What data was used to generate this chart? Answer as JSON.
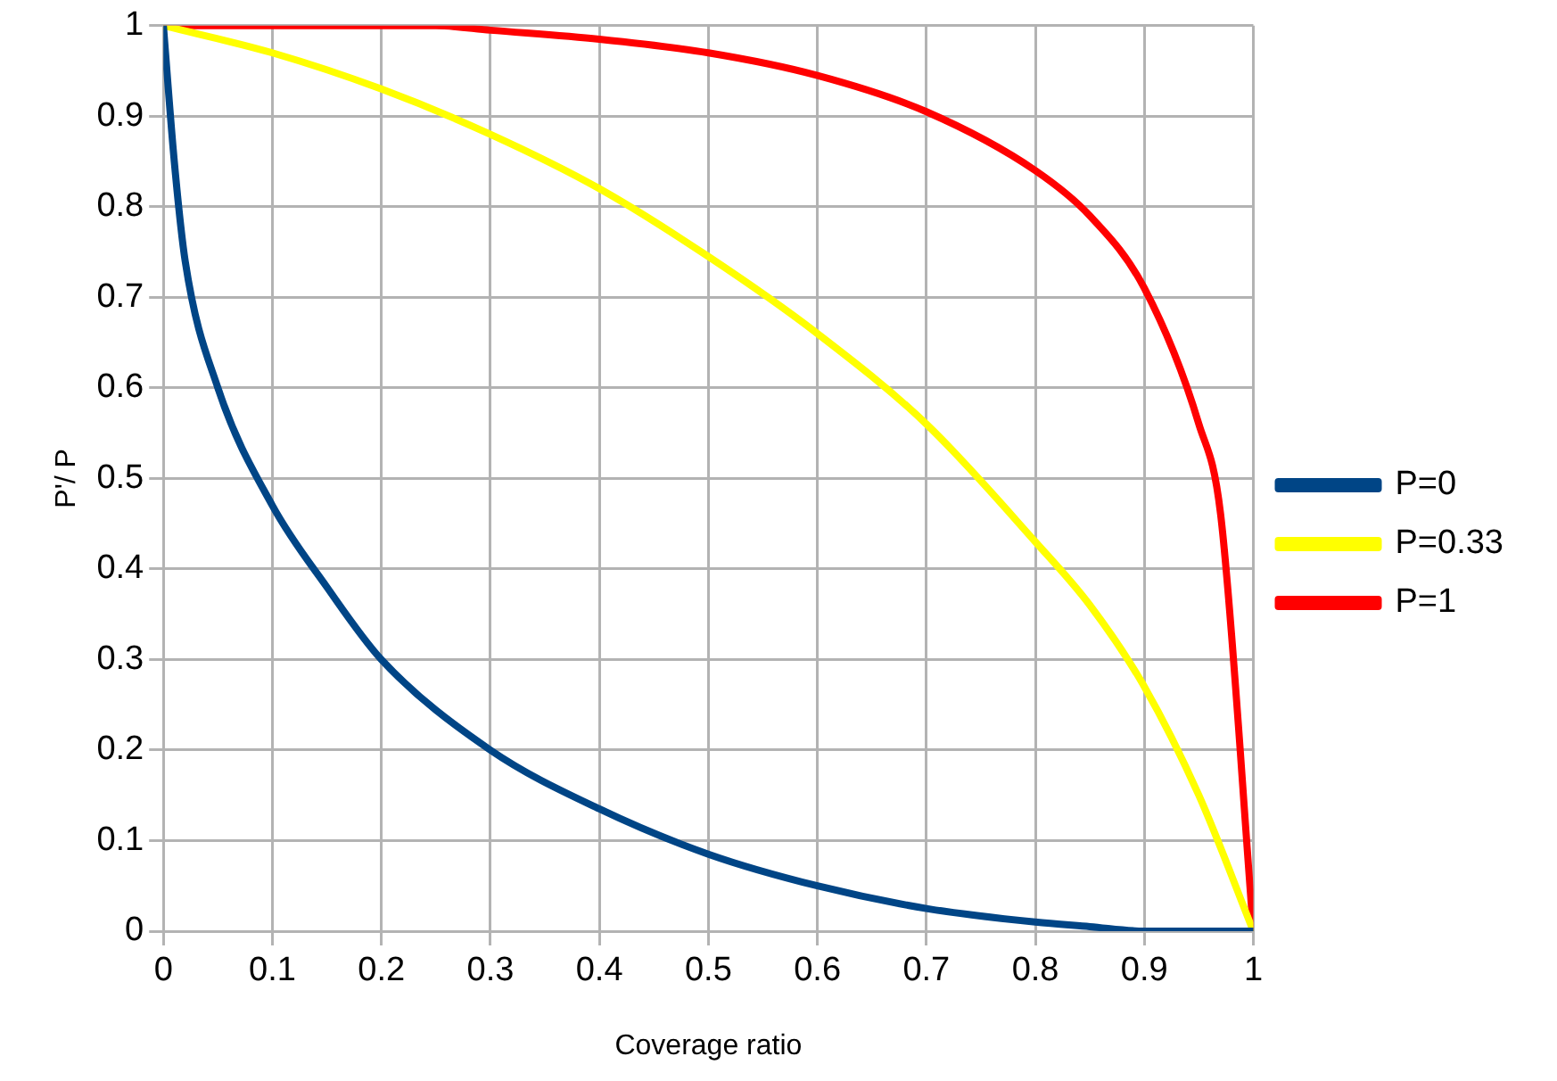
{
  "chart_data": {
    "type": "line",
    "xlabel": "Coverage ratio",
    "ylabel": "P'/ P",
    "xlim": [
      0,
      1
    ],
    "ylim": [
      0,
      1
    ],
    "xticks": [
      0,
      0.1,
      0.2,
      0.3,
      0.4,
      0.5,
      0.6,
      0.7,
      0.8,
      0.9,
      1
    ],
    "yticks": [
      0,
      0.1,
      0.2,
      0.3,
      0.4,
      0.5,
      0.6,
      0.7,
      0.8,
      0.9,
      1
    ],
    "grid": true,
    "legend": "right",
    "marker": "none",
    "line_style": "solid",
    "series": [
      {
        "name": "P=0",
        "color": "#004586",
        "x": [
          0,
          0.01,
          0.02,
          0.05,
          0.1,
          0.15,
          0.2,
          0.3,
          0.4,
          0.5,
          0.6,
          0.7,
          0.8,
          0.85,
          0.9,
          1
        ],
        "values": [
          1,
          0.85,
          0.74,
          0.6,
          0.47,
          0.38,
          0.3,
          0.2,
          0.135,
          0.085,
          0.05,
          0.025,
          0.01,
          0.005,
          0,
          0
        ]
      },
      {
        "name": "P=0.33",
        "color": "#ffff00",
        "x": [
          0,
          0.1,
          0.2,
          0.3,
          0.4,
          0.5,
          0.6,
          0.7,
          0.8,
          0.85,
          0.9,
          0.95,
          1
        ],
        "values": [
          1,
          0.97,
          0.93,
          0.88,
          0.82,
          0.745,
          0.66,
          0.56,
          0.43,
          0.36,
          0.27,
          0.15,
          0
        ]
      },
      {
        "name": "P=1",
        "color": "#ff0000",
        "x": [
          0,
          0.25,
          0.3,
          0.4,
          0.5,
          0.6,
          0.7,
          0.8,
          0.85,
          0.9,
          0.95,
          0.97,
          1
        ],
        "values": [
          1,
          1,
          0.995,
          0.985,
          0.97,
          0.945,
          0.905,
          0.84,
          0.79,
          0.71,
          0.56,
          0.46,
          0
        ]
      }
    ]
  }
}
